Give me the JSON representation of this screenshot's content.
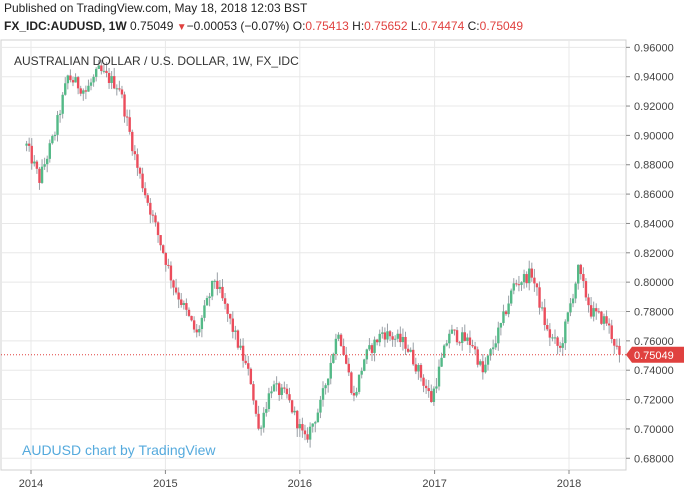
{
  "header": {
    "published_line": "Published on TradingView.com, May 18, 2018 12:03 BST",
    "symbol": "FX_IDC:AUDUSD, 1W",
    "last": "0.75049",
    "change_arrow": "▼",
    "change": "−0.00053 (−0.07%)",
    "open_label": "O:",
    "open": "0.75413",
    "high_label": "H:",
    "high": "0.75652",
    "low_label": "L:",
    "low": "0.74474",
    "close_label": "C:",
    "close": "0.75049"
  },
  "watermark": "AUDUSD chart by TradingView",
  "current_price_tag": "0.75049",
  "colors": {
    "up": "#53b987",
    "down": "#eb4d5c",
    "price_line": "#e0413f",
    "grid": "#e8e8e8",
    "watermark": "#55aadd"
  },
  "chart_data": {
    "type": "candlestick",
    "title": "AUSTRALIAN DOLLAR / U.S. DOLLAR, 1W, FX_IDC",
    "x_ticks": [
      "2014",
      "2015",
      "2016",
      "2017",
      "2018"
    ],
    "y_ticks": [
      "0.96000",
      "0.94000",
      "0.92000",
      "0.90000",
      "0.88000",
      "0.86000",
      "0.84000",
      "0.82000",
      "0.80000",
      "0.78000",
      "0.76000",
      "0.74000",
      "0.72000",
      "0.70000",
      "0.68000"
    ],
    "ylim": [
      0.672,
      0.965
    ],
    "current_value": 0.75049,
    "path_points": [
      [
        "2013-12-20",
        0.893
      ],
      [
        "2014-01-24",
        0.87
      ],
      [
        "2014-03-07",
        0.902
      ],
      [
        "2014-04-11",
        0.94
      ],
      [
        "2014-05-30",
        0.93
      ],
      [
        "2014-07-04",
        0.944
      ],
      [
        "2014-08-29",
        0.933
      ],
      [
        "2014-10-17",
        0.878
      ],
      [
        "2014-12-05",
        0.838
      ],
      [
        "2015-01-23",
        0.798
      ],
      [
        "2015-03-27",
        0.764
      ],
      [
        "2015-05-15",
        0.802
      ],
      [
        "2015-06-26",
        0.773
      ],
      [
        "2015-08-21",
        0.733
      ],
      [
        "2015-09-11",
        0.699
      ],
      [
        "2015-10-16",
        0.729
      ],
      [
        "2015-11-27",
        0.722
      ],
      [
        "2016-01-15",
        0.692
      ],
      [
        "2016-02-26",
        0.716
      ],
      [
        "2016-04-15",
        0.768
      ],
      [
        "2016-05-27",
        0.721
      ],
      [
        "2016-06-24",
        0.748
      ],
      [
        "2016-08-12",
        0.766
      ],
      [
        "2016-10-14",
        0.758
      ],
      [
        "2016-11-18",
        0.74
      ],
      [
        "2016-12-23",
        0.72
      ],
      [
        "2017-02-10",
        0.766
      ],
      [
        "2017-04-14",
        0.758
      ],
      [
        "2017-05-12",
        0.738
      ],
      [
        "2017-06-30",
        0.77
      ],
      [
        "2017-08-04",
        0.798
      ],
      [
        "2017-09-22",
        0.806
      ],
      [
        "2017-11-03",
        0.766
      ],
      [
        "2017-12-08",
        0.754
      ],
      [
        "2018-01-26",
        0.808
      ],
      [
        "2018-03-02",
        0.78
      ],
      [
        "2018-04-13",
        0.773
      ],
      [
        "2018-05-18",
        0.75
      ]
    ]
  }
}
